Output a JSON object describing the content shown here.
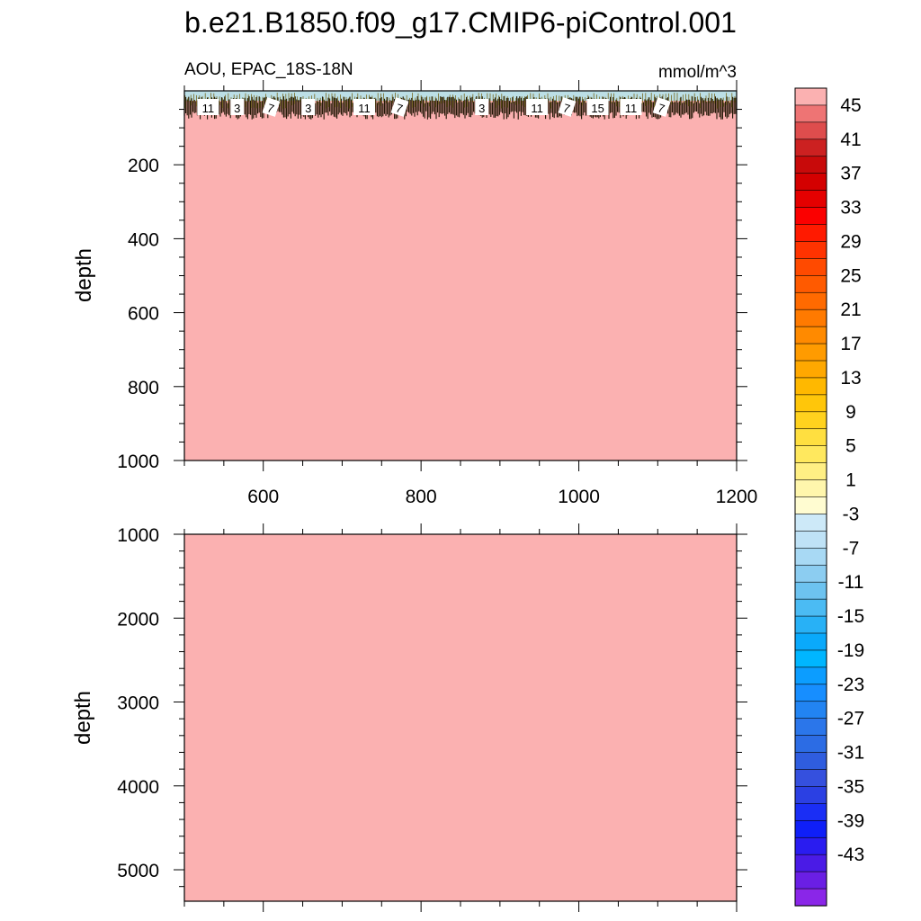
{
  "title": "b.e21.B1850.f09_g17.CMIP6-piControl.001",
  "left_string": "AOU, EPAC_18S-18N",
  "right_string": "mmol/m^3",
  "chart_data": [
    {
      "type": "heatmap",
      "panel": "upper",
      "ylabel": "depth",
      "xlabel": "",
      "xlim": [
        500,
        1200
      ],
      "ylim": [
        1000,
        0
      ],
      "y_reversed": true,
      "x_ticks": [
        600,
        800,
        1000,
        1200
      ],
      "x_tick_labels": [
        "600",
        "800",
        "1000",
        "1200"
      ],
      "y_ticks": [
        200,
        400,
        600,
        800,
        1000
      ],
      "y_tick_labels": [
        "200",
        "400",
        "600",
        "800",
        "1000"
      ],
      "fill_value": ">45",
      "surface_layer_depth": 70,
      "contour_labels": [
        "11",
        "3",
        "7",
        "3",
        "11",
        "7",
        "3",
        "11",
        "7",
        "15",
        "11",
        "7"
      ],
      "contour_label_x": [
        530,
        567,
        610,
        657,
        728,
        773,
        877,
        947,
        985,
        1024,
        1066,
        1105
      ]
    },
    {
      "type": "heatmap",
      "panel": "lower",
      "ylabel": "depth",
      "xlabel": "",
      "xlim": [
        500,
        1200
      ],
      "ylim": [
        5375,
        1000
      ],
      "y_reversed": true,
      "y_ticks": [
        1000,
        2000,
        3000,
        4000,
        5000
      ],
      "y_tick_labels": [
        "1000",
        "2000",
        "3000",
        "4000",
        "5000"
      ],
      "fill_value": ">45"
    }
  ],
  "colorbar": {
    "labels": [
      "45",
      "41",
      "37",
      "33",
      "29",
      "25",
      "21",
      "17",
      "13",
      "9",
      "5",
      "1",
      "-3",
      "-7",
      "-11",
      "-15",
      "-19",
      "-23",
      "-27",
      "-31",
      "-35",
      "-39",
      "-43"
    ],
    "levels_top_to_bottom": [
      47,
      45,
      43,
      41,
      39,
      37,
      35,
      33,
      31,
      29,
      27,
      25,
      23,
      21,
      19,
      17,
      15,
      13,
      11,
      9,
      7,
      5,
      3,
      1,
      -1,
      -3,
      -5,
      -7,
      -9,
      -11,
      -13,
      -15,
      -17,
      -19,
      -21,
      -23,
      -25,
      -27,
      -29,
      -31,
      -33,
      -35,
      -37,
      -39,
      -41,
      -43,
      -45
    ],
    "colors_top_to_bottom": [
      "#fbb1b1",
      "#ee7474",
      "#de4d4d",
      "#cc2121",
      "#c80a0a",
      "#d40000",
      "#e40000",
      "#fb0000",
      "#ff1a00",
      "#ff3300",
      "#ff4a00",
      "#ff5a00",
      "#ff6a00",
      "#ff7a00",
      "#ff8a00",
      "#ff9b00",
      "#ffa800",
      "#ffb800",
      "#ffc60a",
      "#ffd21e",
      "#ffdf40",
      "#ffe85e",
      "#ffef84",
      "#fff6ac",
      "#fffcd1",
      "#cde9f8",
      "#bfe2f6",
      "#a8d9f4",
      "#8ccdf1",
      "#6dc3f0",
      "#4bbbf3",
      "#28b1f6",
      "#0aa9fb",
      "#00b6ff",
      "#0c9dff",
      "#178eff",
      "#2284f2",
      "#2b76ea",
      "#2c6ce4",
      "#2f5ddf",
      "#3550de",
      "#2b40e3",
      "#1a2ef5",
      "#0f1ff8",
      "#2a1cf0",
      "#4a1be6",
      "#6a1fe4",
      "#8a26e8"
    ]
  }
}
